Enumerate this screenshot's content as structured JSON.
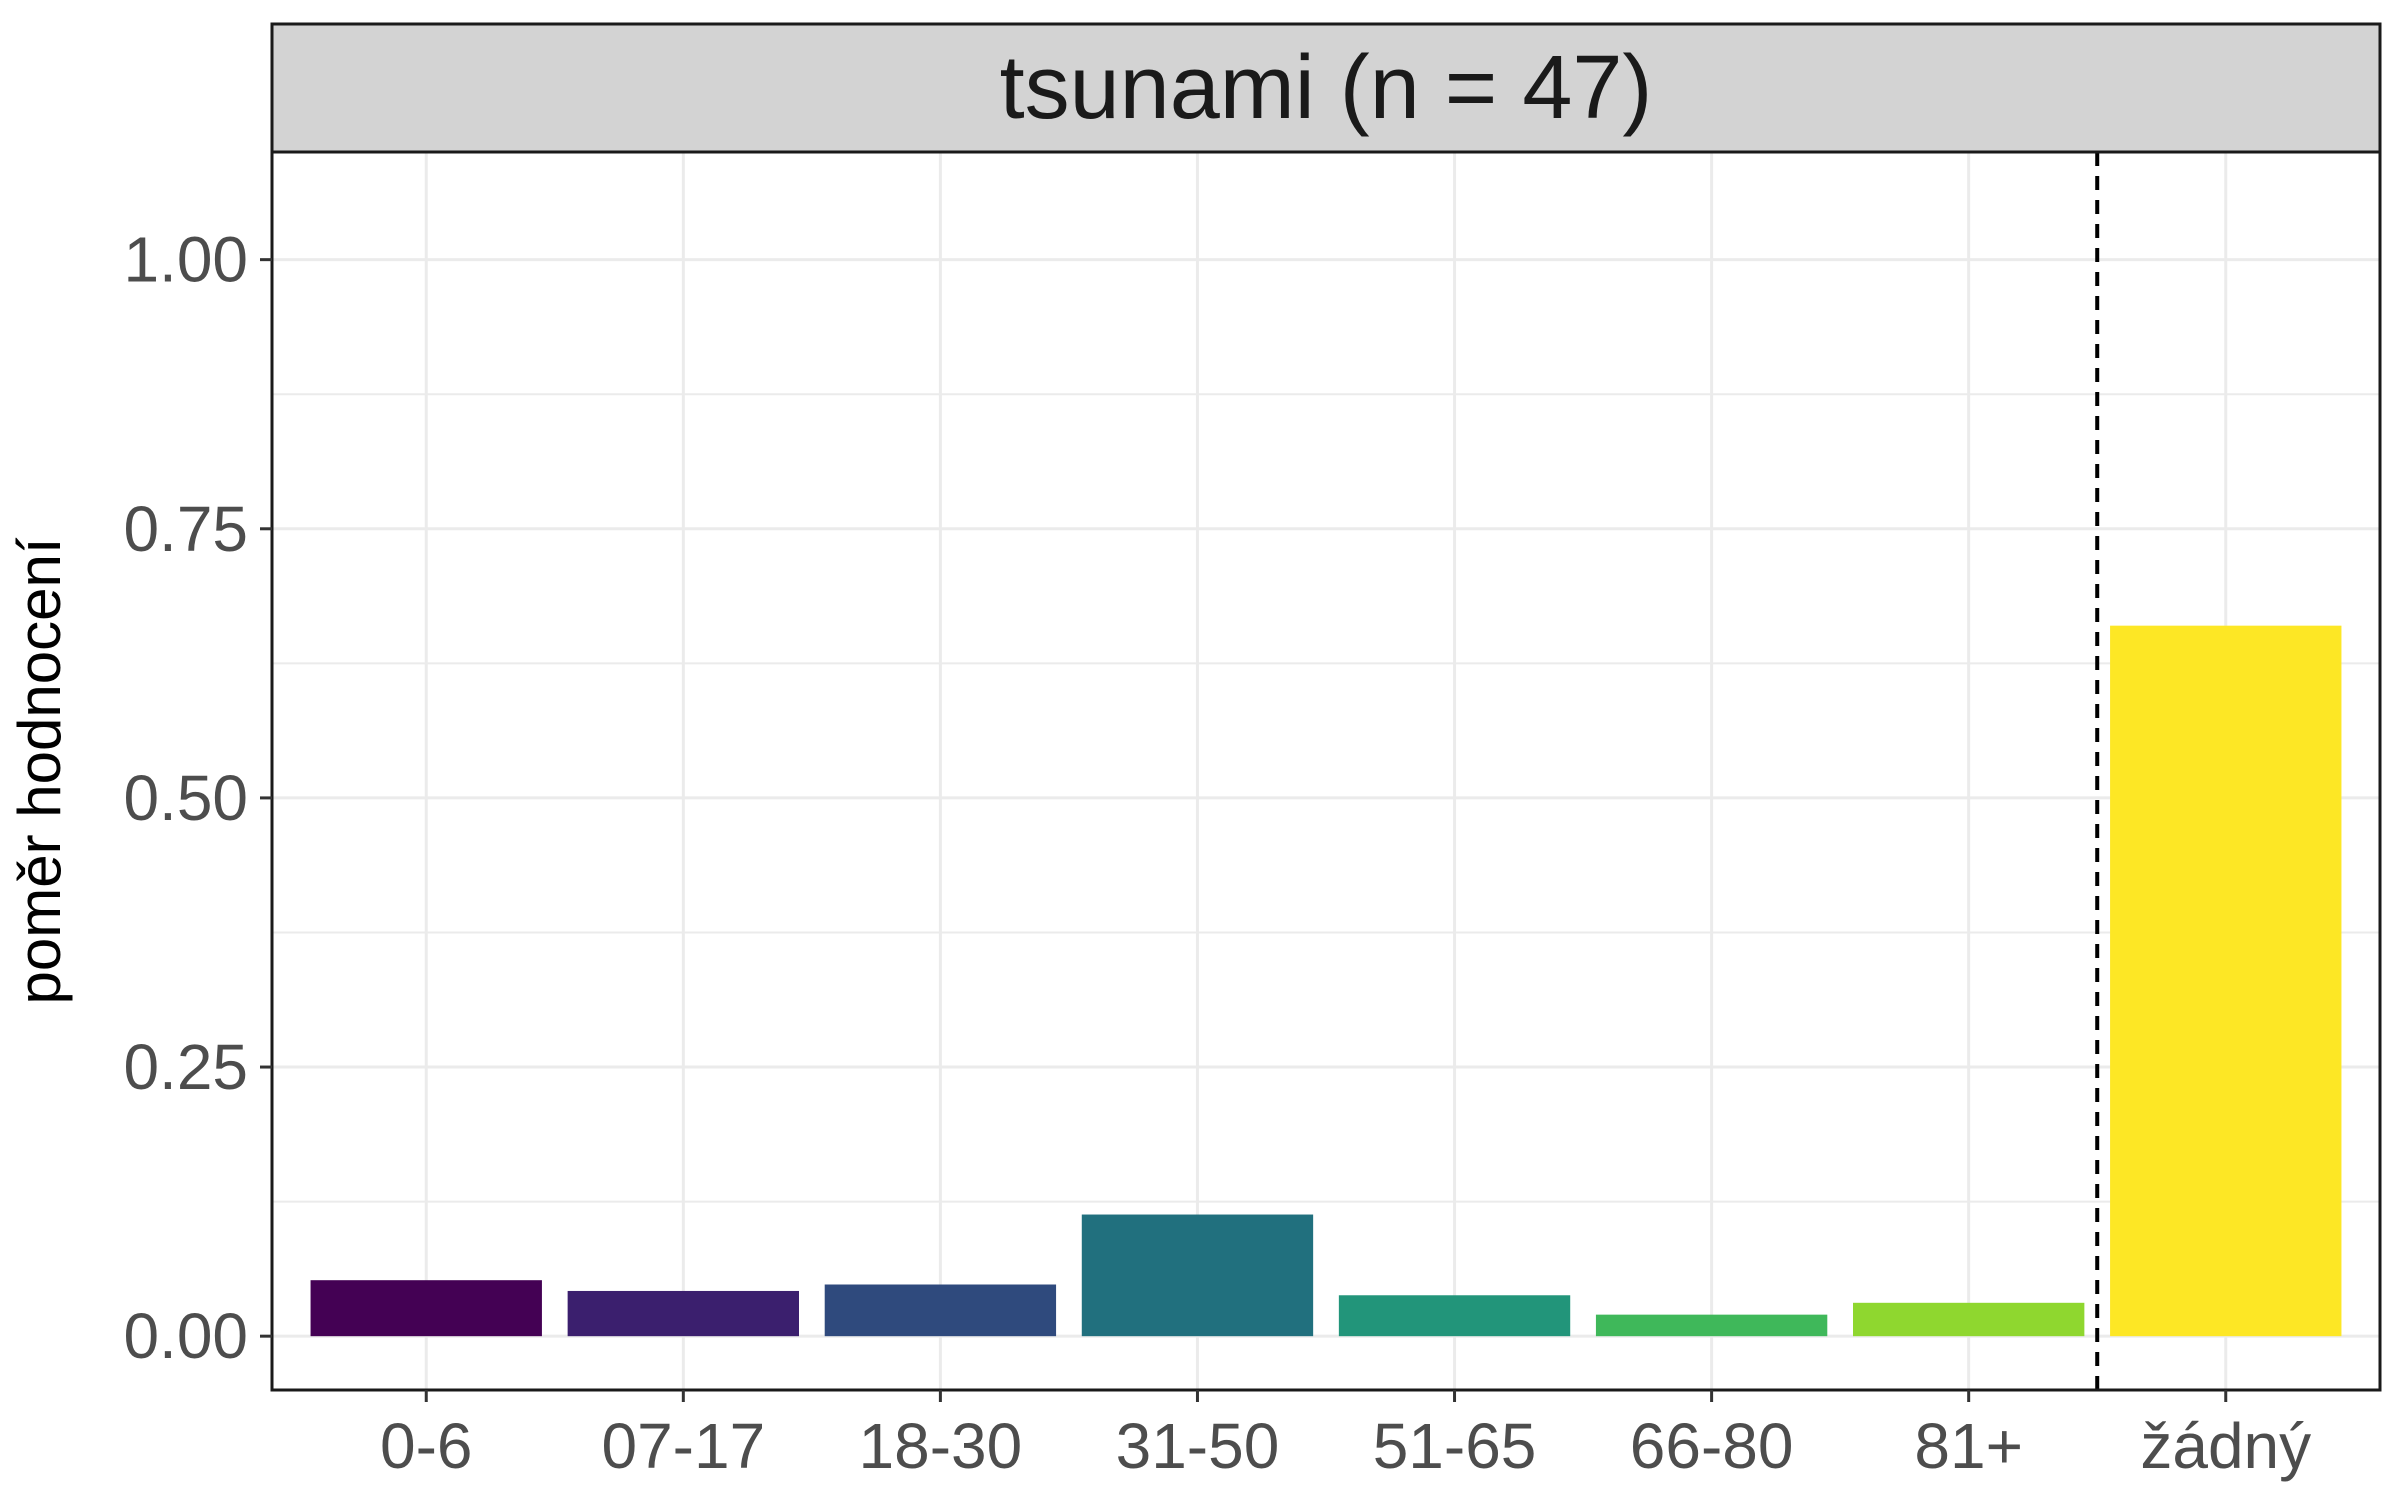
{
  "chart_data": {
    "type": "bar",
    "facet_title": "tsunami (n = 47)",
    "ylabel": "poměr hodnocení",
    "xlabel": "",
    "categories": [
      "0-6",
      "07-17",
      "18-30",
      "31-50",
      "51-65",
      "66-80",
      "81+",
      "žádný"
    ],
    "values": [
      0.052,
      0.042,
      0.048,
      0.113,
      0.038,
      0.02,
      0.031,
      0.66
    ],
    "colors": [
      "#440154",
      "#3B1F6E",
      "#2F4A7D",
      "#21707E",
      "#22957A",
      "#3FB85A",
      "#8FD72F",
      "#FDE725"
    ],
    "ylim": [
      -0.05,
      1.1
    ],
    "yticks": [
      0.0,
      0.25,
      0.5,
      0.75,
      1.0
    ],
    "ytick_labels": [
      "0.00",
      "0.25",
      "0.50",
      "0.75",
      "1.00"
    ],
    "separator_after_category": "81+",
    "grid": true,
    "theme_colors": {
      "strip_background": "#D3D3D3",
      "panel_border": "#1a1a1a",
      "grid": "#EBEBEB"
    }
  }
}
